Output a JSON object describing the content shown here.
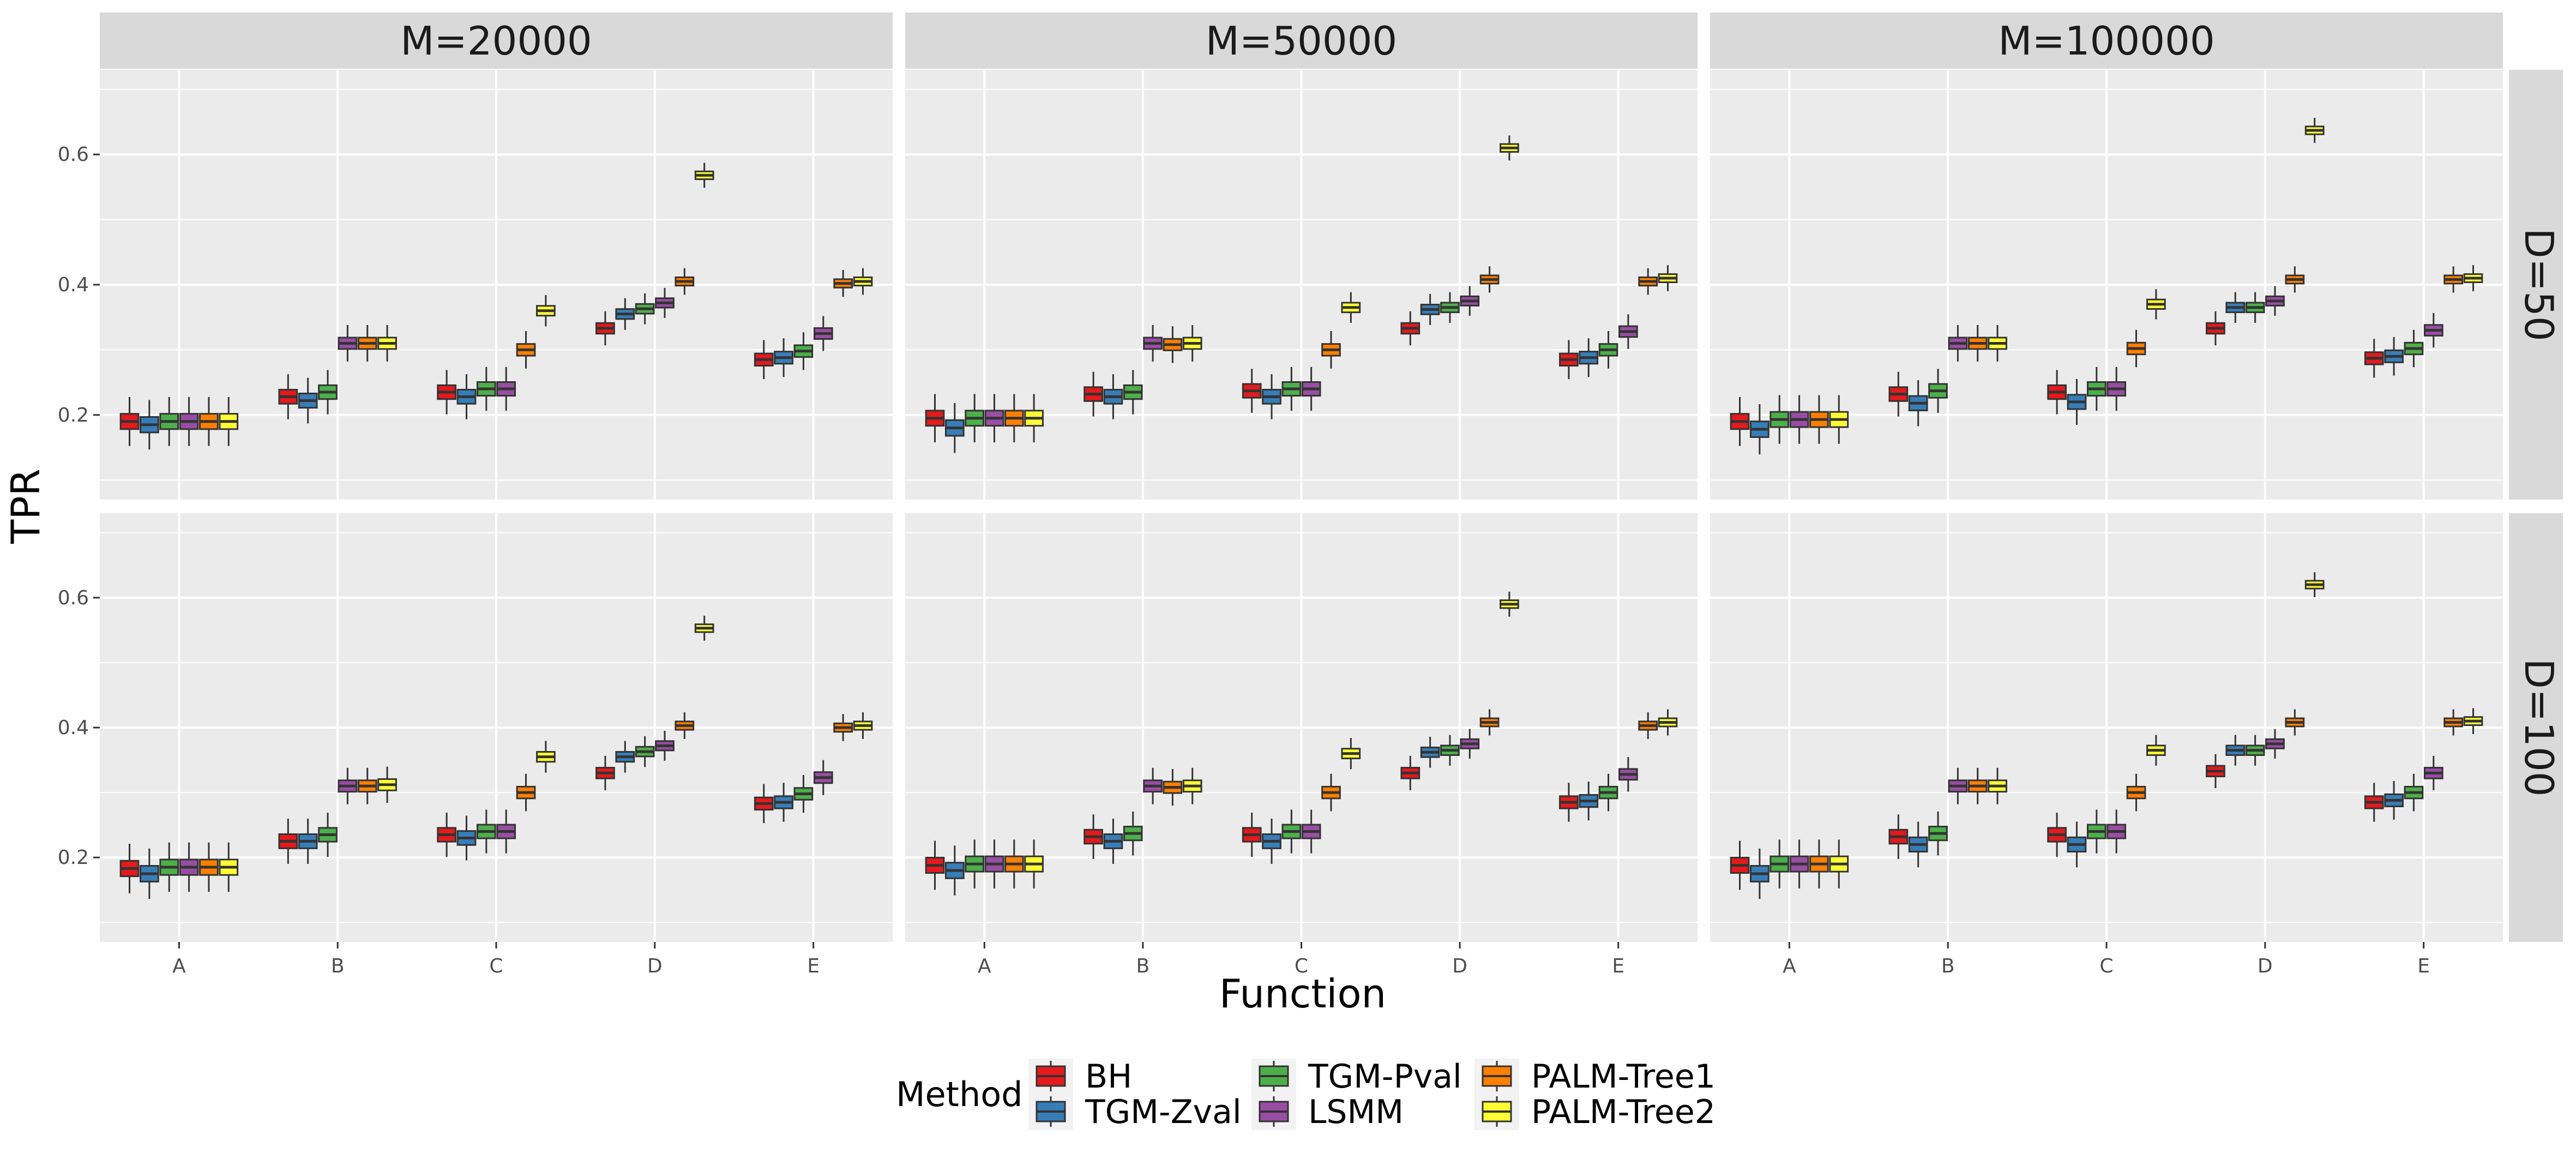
{
  "chart_data": {
    "type": "boxplot",
    "xlabel": "Function",
    "ylabel": "TPR",
    "ylim": [
      0.07,
      0.73
    ],
    "yticks": [
      0.2,
      0.4,
      0.6
    ],
    "ytick_labels": [
      "0.2",
      "0.4",
      "0.6"
    ],
    "categories": [
      "A",
      "B",
      "C",
      "D",
      "E"
    ],
    "col_facets": [
      "M=20000",
      "M=50000",
      "M=100000"
    ],
    "row_facets": [
      "D=50",
      "D=100"
    ],
    "legend": {
      "title": "Method",
      "position": "bottom",
      "items": [
        "BH",
        "TGM-Zval",
        "TGM-Pval",
        "LSMM",
        "PALM-Tree1",
        "PALM-Tree2"
      ]
    },
    "colors": {
      "BH": "#E41A1C",
      "TGM-Zval": "#377EB8",
      "TGM-Pval": "#4DAF4A",
      "LSMM": "#984EA3",
      "PALM-Tree1": "#FF7F00",
      "PALM-Tree2": "#FFFF33",
      "panel_bg": "#EBEBEB",
      "strip_bg": "#D9D9D9",
      "grid": "#FFFFFF"
    },
    "grid": true,
    "panels": [
      {
        "row": 0,
        "col": 0,
        "medians": [
          [
            0.19,
            0.185,
            0.19,
            0.19,
            0.19,
            0.19
          ],
          [
            0.228,
            0.222,
            0.235,
            0.31,
            0.31,
            0.31
          ],
          [
            0.235,
            0.228,
            0.24,
            0.24,
            0.3,
            0.36
          ],
          [
            0.333,
            0.355,
            0.363,
            0.372,
            0.405,
            0.568
          ],
          [
            0.285,
            0.288,
            0.298,
            0.325,
            0.402,
            0.405
          ]
        ]
      },
      {
        "row": 0,
        "col": 1,
        "medians": [
          [
            0.195,
            0.18,
            0.195,
            0.195,
            0.195,
            0.195
          ],
          [
            0.232,
            0.228,
            0.235,
            0.31,
            0.308,
            0.31
          ],
          [
            0.237,
            0.228,
            0.24,
            0.24,
            0.3,
            0.365
          ],
          [
            0.333,
            0.362,
            0.365,
            0.375,
            0.408,
            0.61
          ],
          [
            0.285,
            0.288,
            0.3,
            0.328,
            0.405,
            0.41
          ]
        ]
      },
      {
        "row": 0,
        "col": 2,
        "medians": [
          [
            0.19,
            0.178,
            0.193,
            0.193,
            0.193,
            0.193
          ],
          [
            0.232,
            0.218,
            0.237,
            0.31,
            0.31,
            0.31
          ],
          [
            0.235,
            0.22,
            0.24,
            0.24,
            0.302,
            0.37
          ],
          [
            0.333,
            0.365,
            0.365,
            0.375,
            0.408,
            0.637
          ],
          [
            0.287,
            0.29,
            0.302,
            0.33,
            0.408,
            0.41
          ]
        ]
      },
      {
        "row": 1,
        "col": 0,
        "medians": [
          [
            0.183,
            0.175,
            0.185,
            0.185,
            0.185,
            0.185
          ],
          [
            0.225,
            0.225,
            0.235,
            0.31,
            0.31,
            0.312
          ],
          [
            0.235,
            0.23,
            0.24,
            0.24,
            0.3,
            0.355
          ],
          [
            0.33,
            0.355,
            0.363,
            0.372,
            0.403,
            0.553
          ],
          [
            0.283,
            0.285,
            0.298,
            0.323,
            0.4,
            0.403
          ]
        ]
      },
      {
        "row": 1,
        "col": 1,
        "medians": [
          [
            0.188,
            0.18,
            0.19,
            0.19,
            0.19,
            0.19
          ],
          [
            0.232,
            0.225,
            0.237,
            0.31,
            0.308,
            0.31
          ],
          [
            0.235,
            0.225,
            0.24,
            0.24,
            0.3,
            0.36
          ],
          [
            0.33,
            0.362,
            0.365,
            0.375,
            0.408,
            0.59
          ],
          [
            0.285,
            0.287,
            0.3,
            0.328,
            0.403,
            0.408
          ]
        ]
      },
      {
        "row": 1,
        "col": 2,
        "medians": [
          [
            0.188,
            0.175,
            0.19,
            0.19,
            0.19,
            0.19
          ],
          [
            0.232,
            0.22,
            0.237,
            0.31,
            0.31,
            0.31
          ],
          [
            0.235,
            0.22,
            0.24,
            0.24,
            0.3,
            0.365
          ],
          [
            0.333,
            0.365,
            0.365,
            0.375,
            0.408,
            0.62
          ],
          [
            0.285,
            0.288,
            0.3,
            0.33,
            0.408,
            0.41
          ]
        ]
      }
    ]
  }
}
